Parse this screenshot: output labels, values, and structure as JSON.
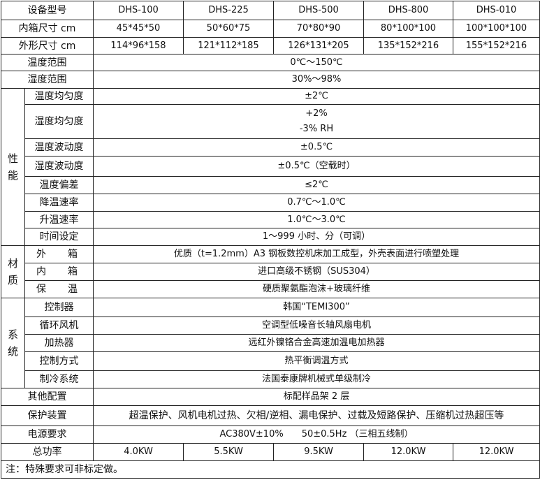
{
  "header": {
    "label": "设备型号",
    "models": [
      "DHS-100",
      "DHS-225",
      "DHS-500",
      "DHS-800",
      "DHS-010"
    ]
  },
  "inner_size": {
    "label": "内箱尺寸 cm",
    "values": [
      "45*45*50",
      "50*60*75",
      "70*80*90",
      "80*100*100",
      "100*100*100"
    ]
  },
  "outer_size": {
    "label": "外形尺寸 cm",
    "values": [
      "114*96*158",
      "121*112*185",
      "126*131*205",
      "135*152*216",
      "155*152*216"
    ]
  },
  "temp_range": {
    "label": "温度范围",
    "value": "0℃～150℃"
  },
  "humidity_range": {
    "label": "湿度范围",
    "value": "30%～98%"
  },
  "performance": {
    "group": "性能",
    "rows": [
      {
        "label": "温度均匀度",
        "value": "±2℃"
      },
      {
        "label": "湿度均匀度",
        "value": "+2%",
        "value2": "-3% RH"
      },
      {
        "label": "温度波动度",
        "value": "±0.5℃"
      },
      {
        "label": "湿度波动度",
        "value": "±0.5℃（空载时）"
      },
      {
        "label": "温度偏差",
        "value": "≤2℃"
      },
      {
        "label": "降温速率",
        "value": "0.7℃～1.0℃"
      },
      {
        "label": "升温速率",
        "value": "1.0℃～3.0℃"
      },
      {
        "label": "时间设定",
        "value": "1～999 小时、分（可调）"
      }
    ]
  },
  "material": {
    "group": "材质",
    "rows": [
      {
        "label_a": "外",
        "label_b": "箱",
        "value": "优质（t=1.2mm）A3 钢板数控机床加工成型，外壳表面进行喷塑处理"
      },
      {
        "label_a": "内",
        "label_b": "箱",
        "value": "进口高级不锈钢（SUS304）"
      },
      {
        "label_a": "保",
        "label_b": "温",
        "value": "硬质聚氨酯泡沫+玻璃纤维"
      }
    ]
  },
  "system": {
    "group": "系统",
    "rows": [
      {
        "label": "控制器",
        "value": "韩国“TEMI300”"
      },
      {
        "label": "循环风机",
        "value": "空调型低噪音长轴风扇电机"
      },
      {
        "label": "加热器",
        "value": "远红外镍铬合金高速加温电加热器"
      },
      {
        "label": "控制方式",
        "value": "热平衡调温方式"
      },
      {
        "label": "制冷系统",
        "value": "法国泰康牌机械式单级制冷"
      }
    ]
  },
  "other_config": {
    "label": "其他配置",
    "value": "标配样品架 2 层"
  },
  "protection": {
    "label": "保护装置",
    "value": "超温保护、风机电机过热、欠相/逆相、漏电保护、过载及短路保护、压缩机过热超压等"
  },
  "power_supply": {
    "label": "电源要求",
    "value": "AC380V±10%　　50±0.5Hz （三相五线制）"
  },
  "total_power": {
    "label": "总功率",
    "values": [
      "4.0KW",
      "5.5KW",
      "9.5KW",
      "12.0KW",
      "12.0KW"
    ]
  },
  "note": "注：特殊要求可非标定做。"
}
